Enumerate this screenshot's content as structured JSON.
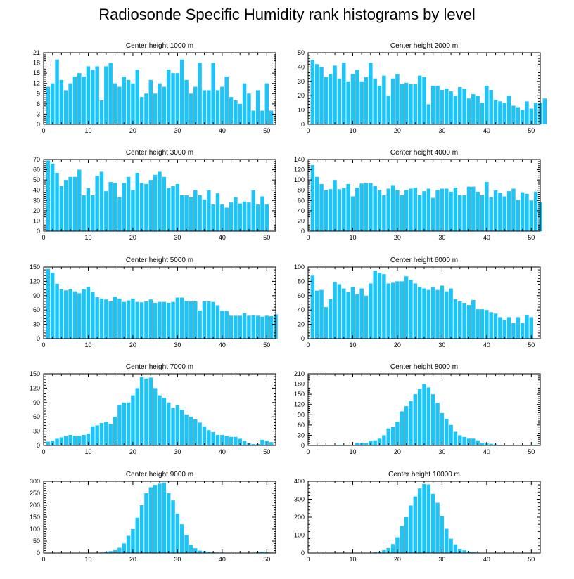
{
  "title": "Radiosonde Specific Humidity rank histograms by level",
  "colors": {
    "bar": "#1ec3f7",
    "axis": "#000000",
    "background": "#ffffff"
  },
  "chart_data": [
    {
      "type": "bar",
      "title": "Center height 1000 m",
      "x_start": 1,
      "xlim": [
        0,
        52
      ],
      "xticks": [
        0,
        10,
        20,
        30,
        40,
        50
      ],
      "ylim": [
        0,
        21
      ],
      "yticks": [
        0,
        3,
        6,
        9,
        12,
        15,
        18,
        21
      ],
      "values": [
        11,
        12,
        19,
        13,
        10,
        12,
        14,
        15,
        14,
        17,
        16,
        17,
        7,
        17,
        18,
        12,
        11,
        14,
        13,
        12,
        16,
        8,
        9,
        13,
        9,
        12,
        11,
        16,
        15,
        15,
        19,
        13,
        9,
        11,
        18,
        10,
        10,
        18,
        10,
        11,
        14,
        8,
        7,
        6,
        12,
        9,
        4,
        10,
        4,
        12,
        4
      ]
    },
    {
      "type": "bar",
      "title": "Center height 2000 m",
      "x_start": 1,
      "xlim": [
        0,
        52
      ],
      "xticks": [
        0,
        10,
        20,
        30,
        40,
        50
      ],
      "ylim": [
        0,
        50
      ],
      "yticks": [
        0,
        10,
        20,
        30,
        40,
        50
      ],
      "values": [
        45,
        42,
        40,
        33,
        35,
        41,
        32,
        43,
        30,
        35,
        38,
        30,
        33,
        43,
        32,
        27,
        34,
        20,
        32,
        35,
        28,
        29,
        28,
        28,
        34,
        33,
        14,
        27,
        27,
        24,
        25,
        23,
        20,
        26,
        25,
        18,
        21,
        20,
        15,
        27,
        24,
        17,
        16,
        15,
        20,
        13,
        12,
        10,
        16,
        11,
        15,
        15,
        18
      ]
    },
    {
      "type": "bar",
      "title": "Center height 3000 m",
      "x_start": 1,
      "xlim": [
        0,
        52
      ],
      "xticks": [
        0,
        10,
        20,
        30,
        40,
        50
      ],
      "ylim": [
        0,
        70
      ],
      "yticks": [
        0,
        10,
        20,
        30,
        40,
        50,
        60,
        70
      ],
      "values": [
        69,
        66,
        57,
        44,
        50,
        53,
        53,
        60,
        35,
        42,
        35,
        54,
        58,
        39,
        48,
        47,
        33,
        47,
        53,
        40,
        57,
        47,
        46,
        50,
        55,
        58,
        53,
        42,
        44,
        46,
        35,
        35,
        33,
        40,
        35,
        31,
        40,
        26,
        37,
        26,
        23,
        28,
        33,
        27,
        29,
        28,
        40,
        26,
        34,
        26
      ]
    },
    {
      "type": "bar",
      "title": "Center height 4000 m",
      "x_start": 1,
      "xlim": [
        0,
        52
      ],
      "xticks": [
        0,
        10,
        20,
        30,
        40,
        50
      ],
      "ylim": [
        0,
        140
      ],
      "yticks": [
        0,
        20,
        40,
        60,
        80,
        100,
        120,
        140
      ],
      "values": [
        129,
        106,
        92,
        80,
        82,
        100,
        82,
        84,
        92,
        68,
        85,
        93,
        94,
        94,
        88,
        80,
        70,
        83,
        90,
        80,
        70,
        80,
        83,
        85,
        70,
        78,
        83,
        65,
        80,
        83,
        83,
        77,
        85,
        70,
        70,
        87,
        87,
        77,
        70,
        96,
        66,
        80,
        75,
        68,
        78,
        83,
        61,
        76,
        73,
        60,
        77,
        56
      ]
    },
    {
      "type": "bar",
      "title": "Center height 5000 m",
      "x_start": 1,
      "xlim": [
        0,
        52
      ],
      "xticks": [
        0,
        10,
        20,
        30,
        40,
        50
      ],
      "ylim": [
        0,
        150
      ],
      "yticks": [
        0,
        30,
        60,
        90,
        120,
        150
      ],
      "values": [
        146,
        138,
        115,
        103,
        101,
        103,
        99,
        95,
        103,
        109,
        98,
        87,
        84,
        82,
        78,
        88,
        84,
        77,
        80,
        84,
        77,
        76,
        78,
        82,
        75,
        77,
        77,
        75,
        77,
        86,
        86,
        79,
        78,
        78,
        59,
        78,
        78,
        77,
        70,
        58,
        58,
        48,
        48,
        48,
        53,
        48,
        49,
        48,
        46,
        48,
        47,
        51
      ]
    },
    {
      "type": "bar",
      "title": "Center height 6000 m",
      "x_start": 1,
      "xlim": [
        0,
        52
      ],
      "xticks": [
        0,
        10,
        20,
        30,
        40,
        50
      ],
      "ylim": [
        0,
        100
      ],
      "yticks": [
        0,
        20,
        40,
        60,
        80,
        100
      ],
      "values": [
        88,
        67,
        68,
        44,
        55,
        79,
        76,
        70,
        65,
        72,
        62,
        70,
        60,
        77,
        95,
        92,
        90,
        77,
        78,
        80,
        80,
        87,
        82,
        77,
        72,
        70,
        68,
        72,
        68,
        74,
        66,
        70,
        55,
        52,
        50,
        47,
        54,
        41,
        41,
        40,
        37,
        35,
        30,
        26,
        30,
        22,
        30,
        22,
        33,
        30
      ]
    },
    {
      "type": "bar",
      "title": "Center height 7000 m",
      "x_start": 1,
      "xlim": [
        0,
        52
      ],
      "xticks": [
        0,
        10,
        20,
        30,
        40,
        50
      ],
      "ylim": [
        0,
        150
      ],
      "yticks": [
        0,
        30,
        60,
        90,
        120,
        150
      ],
      "values": [
        8,
        10,
        14,
        17,
        20,
        22,
        20,
        20,
        22,
        25,
        40,
        42,
        47,
        50,
        45,
        60,
        85,
        90,
        90,
        105,
        120,
        143,
        140,
        142,
        120,
        105,
        100,
        90,
        78,
        84,
        75,
        65,
        60,
        55,
        48,
        40,
        32,
        28,
        22,
        22,
        20,
        18,
        18,
        14,
        10,
        5,
        3,
        3,
        12,
        10,
        7
      ]
    },
    {
      "type": "bar",
      "title": "Center height 8000 m",
      "x_start": 1,
      "xlim": [
        0,
        52
      ],
      "xticks": [
        0,
        10,
        20,
        30,
        40,
        50
      ],
      "ylim": [
        0,
        210
      ],
      "yticks": [
        0,
        30,
        60,
        90,
        120,
        150,
        180,
        210
      ],
      "values": [
        0,
        0,
        0,
        0,
        0,
        0,
        2,
        0,
        0,
        1,
        8,
        8,
        7,
        14,
        15,
        20,
        30,
        50,
        55,
        70,
        100,
        115,
        130,
        150,
        165,
        180,
        170,
        150,
        125,
        95,
        78,
        60,
        40,
        30,
        25,
        20,
        20,
        15,
        8,
        8,
        5,
        3,
        2,
        1,
        1,
        0,
        0,
        0,
        0,
        0,
        2
      ]
    },
    {
      "type": "bar",
      "title": "Center height 9000 m",
      "x_start": 1,
      "xlim": [
        0,
        52
      ],
      "xticks": [
        0,
        10,
        20,
        30,
        40,
        50
      ],
      "ylim": [
        0,
        300
      ],
      "yticks": [
        0,
        50,
        100,
        150,
        200,
        250,
        300
      ],
      "values": [
        0,
        0,
        0,
        0,
        0,
        0,
        0,
        0,
        0,
        0,
        0,
        0,
        2,
        5,
        8,
        12,
        22,
        40,
        72,
        100,
        148,
        200,
        250,
        275,
        285,
        290,
        295,
        250,
        220,
        165,
        120,
        75,
        35,
        20,
        10,
        8,
        5,
        3,
        2,
        2,
        0,
        0,
        0,
        0,
        0,
        0,
        0,
        3,
        5,
        3,
        2
      ]
    },
    {
      "type": "bar",
      "title": "Center height 10000 m",
      "x_start": 1,
      "xlim": [
        0,
        52
      ],
      "xticks": [
        0,
        10,
        20,
        30,
        40,
        50
      ],
      "ylim": [
        0,
        400
      ],
      "yticks": [
        0,
        100,
        200,
        300,
        400
      ],
      "values": [
        0,
        0,
        0,
        0,
        0,
        0,
        0,
        0,
        0,
        0,
        0,
        0,
        0,
        2,
        4,
        8,
        16,
        28,
        50,
        88,
        150,
        200,
        265,
        315,
        360,
        385,
        382,
        330,
        280,
        205,
        135,
        80,
        48,
        22,
        15,
        8,
        5,
        3,
        2,
        1,
        0,
        0,
        0,
        0,
        0,
        0,
        0,
        0,
        0,
        0,
        0
      ]
    }
  ]
}
